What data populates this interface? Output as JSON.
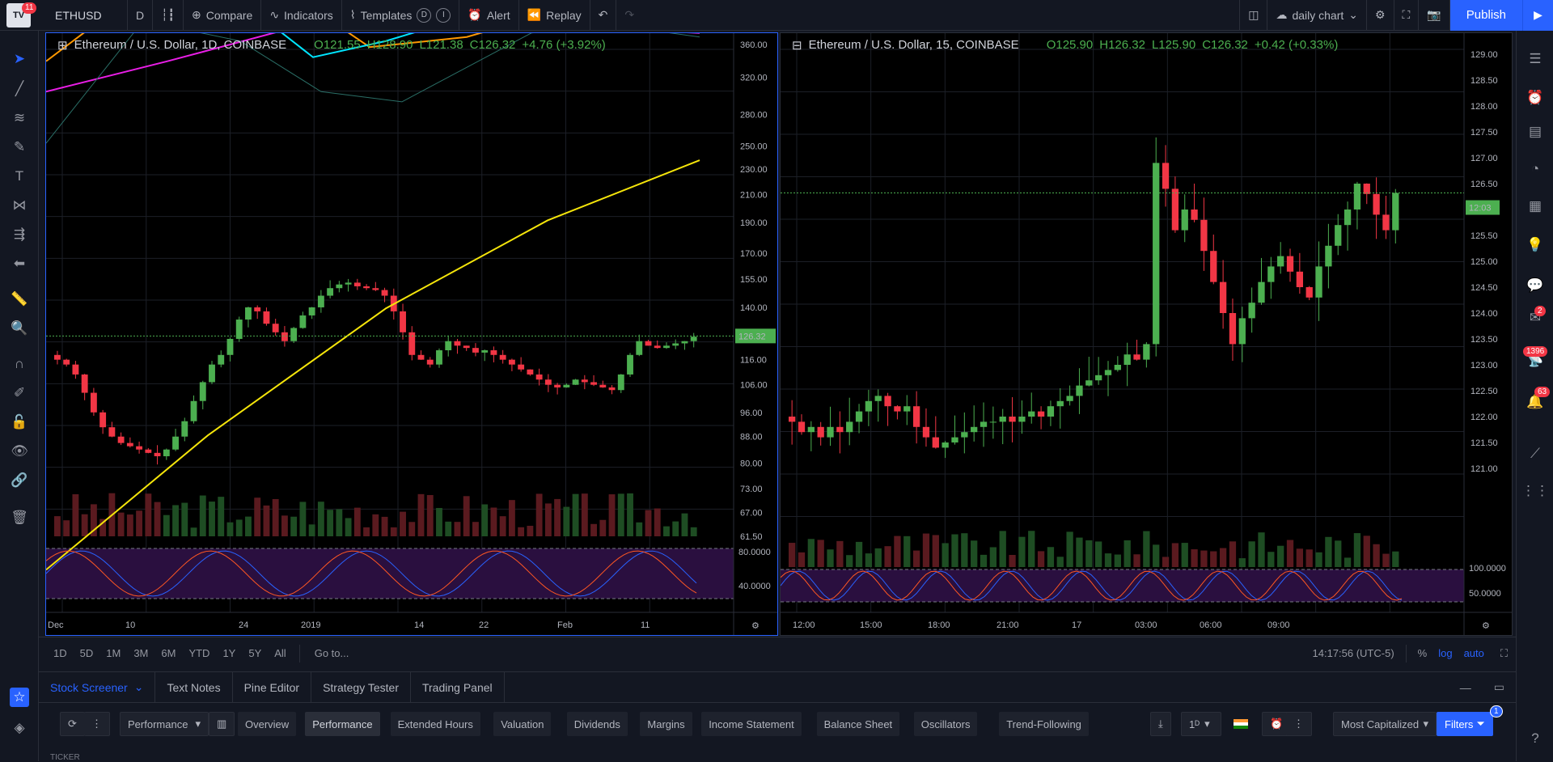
{
  "topbar": {
    "symbol": "ETHUSD",
    "interval": "D",
    "compare": "Compare",
    "indicators": "Indicators",
    "templates": "Templates",
    "alert": "Alert",
    "replay": "Replay",
    "layout_name": "daily chart",
    "publish": "Publish",
    "notif_count": "11"
  },
  "chart_left": {
    "title": "Ethereum / U.S. Dollar, 1D, COINBASE",
    "open": "O121.55",
    "high": "H128.90",
    "low": "L121.38",
    "close": "C126.32",
    "change": "+4.76 (+3.92%)",
    "price_tag": "126.32",
    "price_axis": [
      "360.00",
      "320.00",
      "280.00",
      "250.00",
      "230.00",
      "210.00",
      "190.00",
      "170.00",
      "155.00",
      "140.00",
      "126.32",
      "116.00",
      "106.00",
      "96.00",
      "88.00",
      "80.00",
      "73.00",
      "67.00",
      "61.50"
    ],
    "osc_axis": [
      "80.0000",
      "40.0000"
    ],
    "time_axis": [
      "Dec",
      "10",
      "24",
      "2019",
      "14",
      "22",
      "Feb",
      "11"
    ]
  },
  "chart_right": {
    "title": "Ethereum / U.S. Dollar, 15, COINBASE",
    "open": "O125.90",
    "high": "H126.32",
    "low": "L125.90",
    "close": "C126.32",
    "change": "+0.42 (+0.33%)",
    "price_tag": "126.32",
    "countdown": "12:03",
    "price_axis": [
      "129.00",
      "128.50",
      "128.00",
      "127.50",
      "127.00",
      "126.50",
      "125.50",
      "125.00",
      "124.50",
      "124.00",
      "123.50",
      "123.00",
      "122.50",
      "122.00",
      "121.50",
      "121.00"
    ],
    "osc_axis": [
      "100.0000",
      "50.0000"
    ],
    "time_axis": [
      "12:00",
      "15:00",
      "18:00",
      "21:00",
      "17",
      "03:00",
      "06:00",
      "09:00"
    ]
  },
  "ranges": [
    "1D",
    "5D",
    "1M",
    "3M",
    "6M",
    "YTD",
    "1Y",
    "5Y",
    "All"
  ],
  "goto": "Go to...",
  "clock": "14:17:56 (UTC-5)",
  "scale_opts": [
    "%",
    "log",
    "auto"
  ],
  "panel_tabs": [
    "Stock Screener",
    "Text Notes",
    "Pine Editor",
    "Strategy Tester",
    "Trading Panel"
  ],
  "screener": {
    "preset": "Performance",
    "tabs": [
      "Overview",
      "Performance",
      "Extended Hours",
      "Valuation",
      "Dividends",
      "Margins",
      "Income Statement",
      "Balance Sheet",
      "Oscillators",
      "Trend-Following"
    ],
    "interval": "1ᴰ",
    "sort": "Most Capitalized",
    "filters": "Filters",
    "filters_count": "1",
    "ticker_header": "TICKER"
  },
  "right_badges": [
    "2",
    "1396",
    "63"
  ],
  "colors": {
    "up": "#4caf50",
    "down": "#f23645",
    "accent": "#2962ff",
    "ma_yellow": "#f5e50a",
    "ma_magenta": "#e91ee6",
    "ma_orange": "#ff9800",
    "ma_cyan": "#00e5ff"
  }
}
